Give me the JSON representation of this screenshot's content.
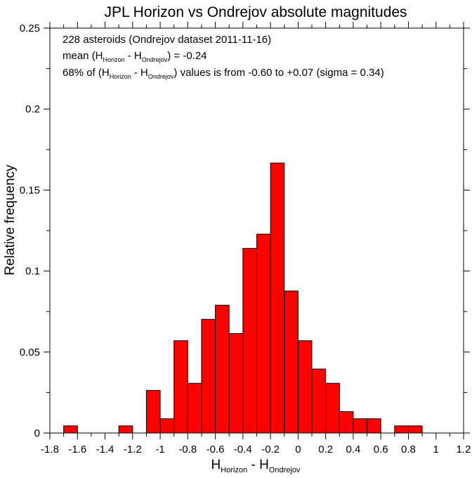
{
  "chart_data": {
    "type": "bar",
    "title": "JPL Horizon vs Ondrejov absolute magnitudes",
    "xlabel": {
      "main": "H",
      "sub1": "Horizon",
      "mid": " - H",
      "sub2": "Ondrejov"
    },
    "ylabel": "Relative frequency",
    "xlim": [
      -1.8,
      1.2
    ],
    "ylim": [
      0,
      0.25
    ],
    "x_ticks": [
      "-1.8",
      "-1.6",
      "-1.4",
      "-1.2",
      "-1",
      "-0.8",
      "-0.6",
      "-0.4",
      "-0.2",
      "0",
      "0.2",
      "0.4",
      "0.6",
      "0.8",
      "1",
      "1.2"
    ],
    "y_ticks": [
      "0",
      "0.05",
      "0.1",
      "0.15",
      "0.2",
      "0.25"
    ],
    "bin_width": 0.1,
    "bins": [
      {
        "x0": -1.7,
        "x1": -1.6,
        "value": 0.0044
      },
      {
        "x0": -1.3,
        "x1": -1.2,
        "value": 0.0044
      },
      {
        "x0": -1.1,
        "x1": -1.0,
        "value": 0.0263
      },
      {
        "x0": -1.0,
        "x1": -0.9,
        "value": 0.0088
      },
      {
        "x0": -0.9,
        "x1": -0.8,
        "value": 0.057
      },
      {
        "x0": -0.8,
        "x1": -0.7,
        "value": 0.0307
      },
      {
        "x0": -0.7,
        "x1": -0.6,
        "value": 0.0702
      },
      {
        "x0": -0.6,
        "x1": -0.5,
        "value": 0.0789
      },
      {
        "x0": -0.5,
        "x1": -0.4,
        "value": 0.0614
      },
      {
        "x0": -0.4,
        "x1": -0.3,
        "value": 0.114
      },
      {
        "x0": -0.3,
        "x1": -0.2,
        "value": 0.1228
      },
      {
        "x0": -0.2,
        "x1": -0.1,
        "value": 0.1667
      },
      {
        "x0": -0.1,
        "x1": 0.0,
        "value": 0.0877
      },
      {
        "x0": 0.0,
        "x1": 0.1,
        "value": 0.057
      },
      {
        "x0": 0.1,
        "x1": 0.2,
        "value": 0.0395
      },
      {
        "x0": 0.2,
        "x1": 0.3,
        "value": 0.0307
      },
      {
        "x0": 0.3,
        "x1": 0.4,
        "value": 0.0132
      },
      {
        "x0": 0.4,
        "x1": 0.5,
        "value": 0.0088
      },
      {
        "x0": 0.5,
        "x1": 0.6,
        "value": 0.0088
      },
      {
        "x0": 0.7,
        "x1": 0.8,
        "value": 0.0044
      },
      {
        "x0": 0.8,
        "x1": 0.9,
        "value": 0.0044
      }
    ],
    "bar_color": "#ff0000",
    "annotations": {
      "line1": "228 asteroids (Ondrejov dataset 2011-11-16)",
      "line2": {
        "pre": "mean (H",
        "sub1": "Horizon",
        "mid": " - H",
        "sub2": "Ondrejov",
        "post": ") = -0.24"
      },
      "line3": {
        "pre": "68% of (H",
        "sub1": "Horizon",
        "mid": " - H",
        "sub2": "Ondrejov",
        "post": ") values is from -0.60 to +0.07 (sigma = 0.34)"
      }
    },
    "grid": false
  }
}
